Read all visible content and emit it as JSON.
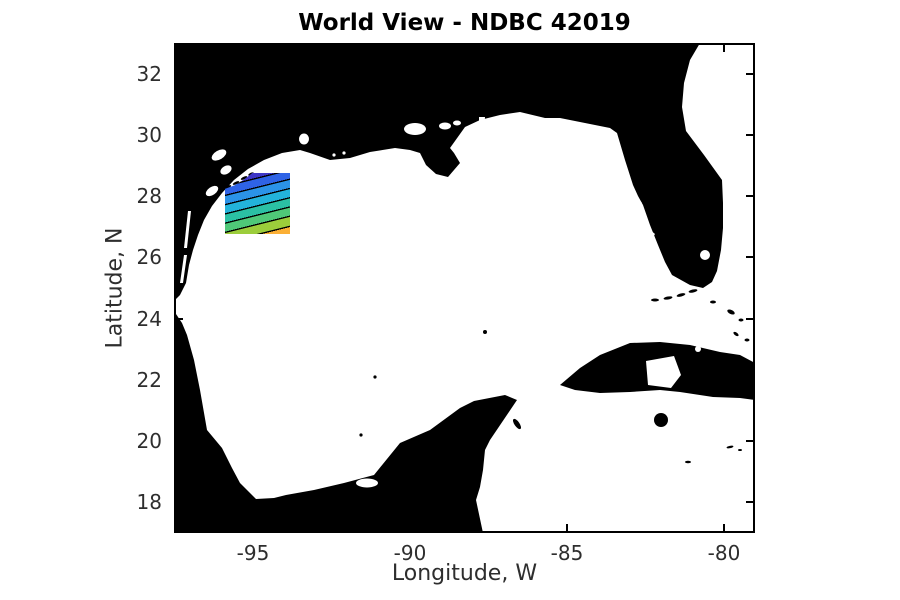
{
  "figure": {
    "title": "World View - NDBC 42019",
    "station_id": "42019",
    "background_color": "#ffffff",
    "text_color": "#2e2e2e",
    "title_color": "#000000"
  },
  "chart_data": {
    "type": "map",
    "title": "World View - NDBC 42019",
    "region": "Gulf of Mexico with Texas-Louisiana-Florida coast, Mexico, Yucatan Peninsula, Cuba and Bahamas",
    "xlabel": "Longitude, W",
    "ylabel": "Latitude, N",
    "xlim": [
      -97.5,
      -79
    ],
    "ylim": [
      17,
      33
    ],
    "xticks": [
      -95,
      -90,
      -85,
      -80
    ],
    "yticks": [
      32,
      30,
      28,
      26,
      24,
      22,
      20,
      18
    ],
    "grid": false,
    "land_color": "#000000",
    "water_color": "#ffffff",
    "axis_color": "#000000",
    "overlay_contour": {
      "description": "Filled contour patch plotted near NDBC buoy 42019, northwest Gulf of Mexico",
      "lon_range": [
        -95.9,
        -93.8
      ],
      "lat_range": [
        26.8,
        28.8
      ],
      "band_colors": [
        "#3e36c6",
        "#2f63e6",
        "#2b93e8",
        "#23b3da",
        "#2bc0a4",
        "#4fc878",
        "#9ccd3b",
        "#fbaf35"
      ],
      "contour_line_color": "#000000",
      "line_angle_deg": 166
    }
  }
}
